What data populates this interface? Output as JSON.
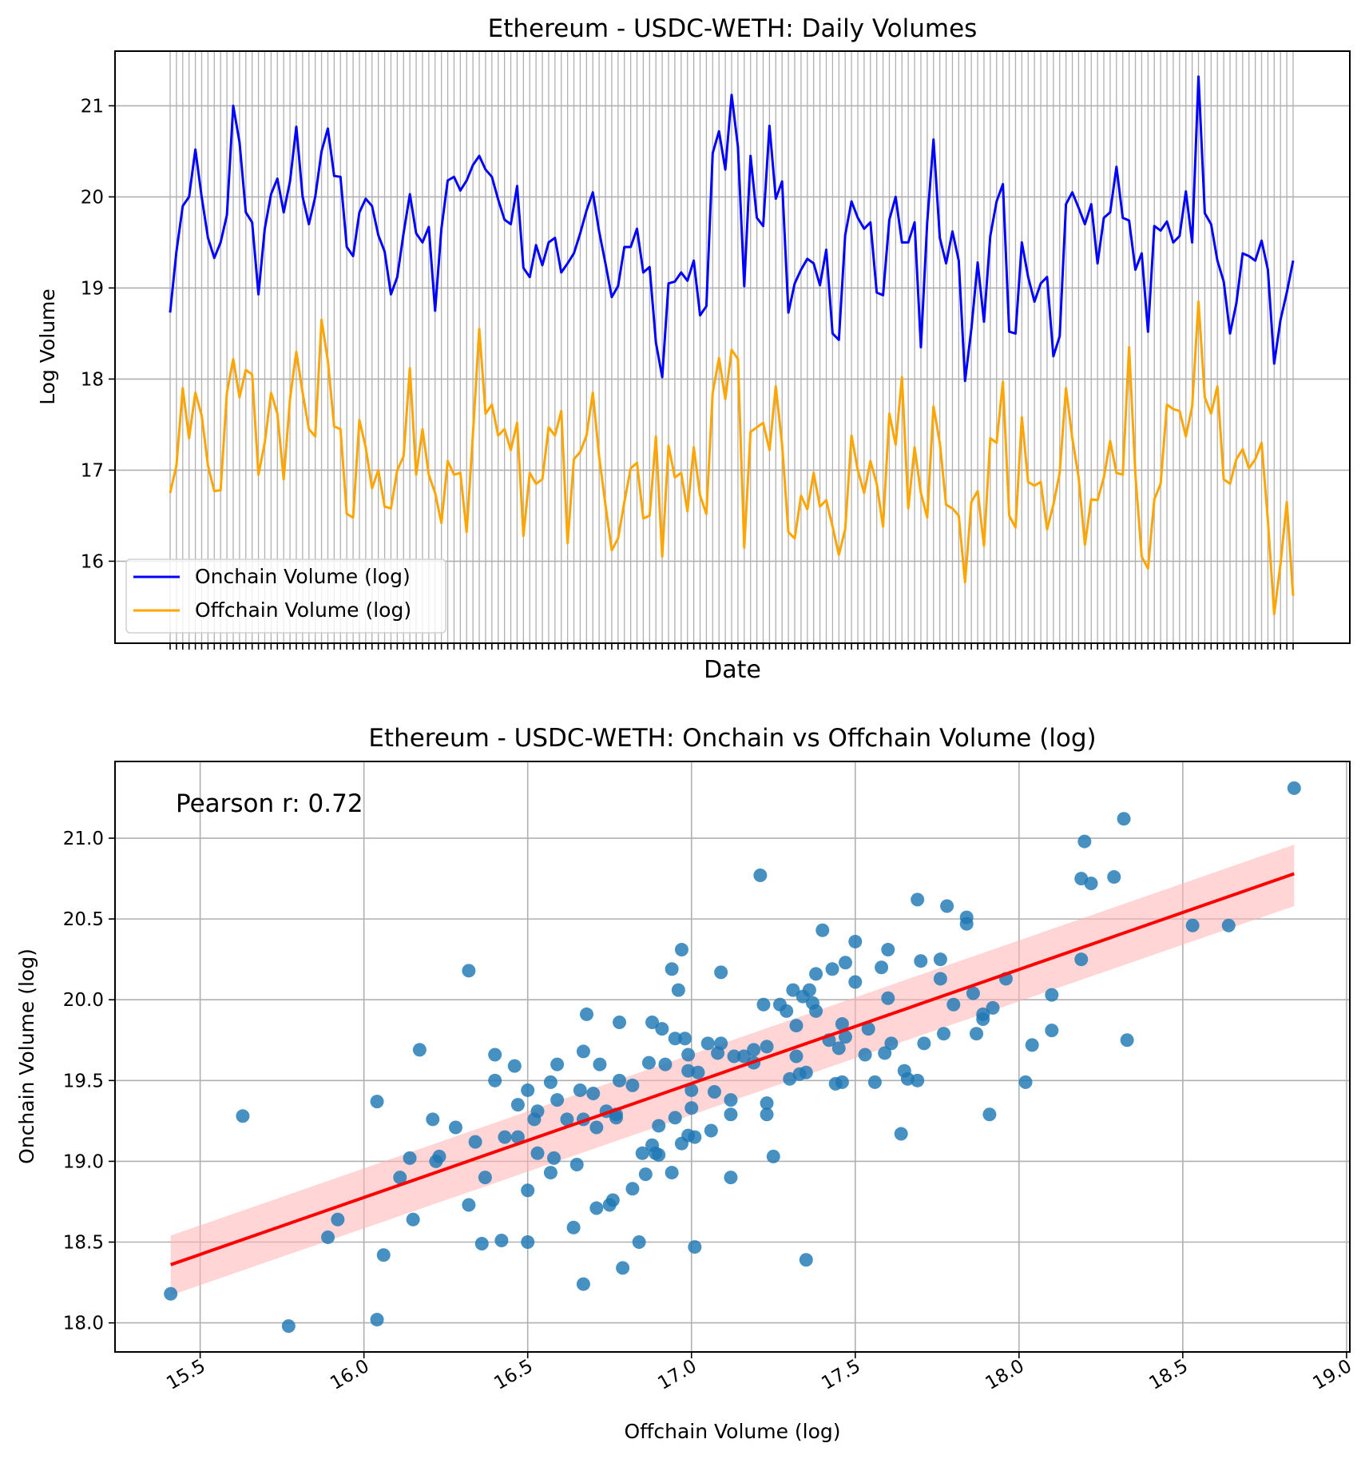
{
  "chart_data": [
    {
      "type": "line",
      "title": "Ethereum - USDC-WETH: Daily Volumes",
      "xlabel": "Date",
      "ylabel": "Log Volume",
      "ylim": [
        15.1,
        21.6
      ],
      "yticks": [
        "16",
        "17",
        "18",
        "19",
        "20",
        "21"
      ],
      "ytick_values": [
        16,
        17,
        18,
        19,
        20,
        21
      ],
      "grid": true,
      "legend_position": "lower-left",
      "series": [
        {
          "name": "Onchain Volume (log)",
          "color": "#0000ff",
          "values": [
            18.73,
            19.4,
            19.9,
            20.0,
            20.52,
            20.0,
            19.55,
            19.33,
            19.5,
            19.8,
            21.0,
            20.6,
            19.83,
            19.72,
            18.93,
            19.65,
            20.03,
            20.2,
            19.83,
            20.17,
            20.77,
            20.0,
            19.7,
            20.0,
            20.5,
            20.75,
            20.23,
            20.22,
            19.45,
            19.35,
            19.83,
            19.98,
            19.9,
            19.58,
            19.4,
            18.93,
            19.12,
            19.6,
            20.03,
            19.6,
            19.5,
            19.67,
            18.75,
            19.65,
            20.18,
            20.22,
            20.07,
            20.18,
            20.35,
            20.45,
            20.3,
            20.22,
            19.97,
            19.75,
            19.7,
            20.12,
            19.22,
            19.12,
            19.47,
            19.25,
            19.5,
            19.55,
            19.17,
            19.27,
            19.38,
            19.6,
            19.85,
            20.05,
            19.62,
            19.27,
            18.9,
            19.02,
            19.45,
            19.45,
            19.65,
            19.17,
            19.23,
            18.4,
            18.02,
            19.05,
            19.07,
            19.17,
            19.08,
            19.3,
            18.7,
            18.8,
            20.48,
            20.72,
            20.3,
            21.12,
            20.55,
            19.02,
            20.45,
            19.77,
            19.68,
            20.78,
            19.98,
            20.17,
            18.73,
            19.05,
            19.2,
            19.32,
            19.27,
            19.03,
            19.42,
            18.5,
            18.43,
            19.58,
            19.95,
            19.77,
            19.65,
            19.72,
            18.95,
            18.92,
            19.75,
            20.0,
            19.5,
            19.5,
            19.72,
            18.35,
            19.72,
            20.63,
            19.55,
            19.27,
            19.62,
            19.3,
            17.98,
            18.55,
            19.28,
            18.63,
            19.57,
            19.95,
            20.14,
            18.52,
            18.5,
            19.5,
            19.12,
            18.85,
            19.05,
            19.12,
            18.25,
            18.47,
            19.92,
            20.05,
            19.88,
            19.7,
            19.92,
            19.27,
            19.77,
            19.83,
            20.33,
            19.77,
            19.74,
            19.2,
            19.38,
            18.52,
            19.68,
            19.63,
            19.73,
            19.5,
            19.57,
            20.06,
            19.5,
            21.32,
            19.82,
            19.7,
            19.3,
            19.07,
            18.5,
            18.83,
            19.38,
            19.35,
            19.3,
            19.52,
            19.2,
            18.17,
            18.65,
            18.95,
            19.3
          ]
        },
        {
          "name": "Offchain Volume (log)",
          "color": "#ffa500",
          "values": [
            16.75,
            17.05,
            17.9,
            17.35,
            17.85,
            17.6,
            17.05,
            16.77,
            16.78,
            17.85,
            18.22,
            17.8,
            18.1,
            18.05,
            16.95,
            17.3,
            17.85,
            17.62,
            16.9,
            17.78,
            18.3,
            17.85,
            17.45,
            17.37,
            18.65,
            18.2,
            17.48,
            17.45,
            16.52,
            16.48,
            17.55,
            17.25,
            16.8,
            17.0,
            16.6,
            16.58,
            17.0,
            17.15,
            18.12,
            16.95,
            17.45,
            16.95,
            16.75,
            16.42,
            17.1,
            16.95,
            16.97,
            16.32,
            17.4,
            18.55,
            17.62,
            17.72,
            17.38,
            17.45,
            17.22,
            17.52,
            16.28,
            16.97,
            16.85,
            16.9,
            17.47,
            17.38,
            17.65,
            16.2,
            17.12,
            17.2,
            17.38,
            17.85,
            17.15,
            16.62,
            16.12,
            16.25,
            16.65,
            17.02,
            17.08,
            16.47,
            16.5,
            17.37,
            16.05,
            17.27,
            16.92,
            16.97,
            16.55,
            17.25,
            16.72,
            16.52,
            17.85,
            18.23,
            17.78,
            18.32,
            18.22,
            16.15,
            17.42,
            17.47,
            17.52,
            17.22,
            17.92,
            17.28,
            16.32,
            16.25,
            16.72,
            16.57,
            16.97,
            16.6,
            16.67,
            16.38,
            16.07,
            16.35,
            17.38,
            17.0,
            16.75,
            17.1,
            16.85,
            16.38,
            17.62,
            17.28,
            18.02,
            16.58,
            17.25,
            16.75,
            16.48,
            17.7,
            17.3,
            16.62,
            16.58,
            16.5,
            15.77,
            16.65,
            16.77,
            16.17,
            17.35,
            17.3,
            17.97,
            16.5,
            16.37,
            17.58,
            16.87,
            16.83,
            16.87,
            16.35,
            16.62,
            16.97,
            17.9,
            17.35,
            16.92,
            16.18,
            16.68,
            16.67,
            16.92,
            17.32,
            16.97,
            16.95,
            18.35,
            16.95,
            16.05,
            15.92,
            16.68,
            16.85,
            17.72,
            17.67,
            17.65,
            17.37,
            17.7,
            18.85,
            17.8,
            17.62,
            17.92,
            16.9,
            16.85,
            17.12,
            17.23,
            17.02,
            17.12,
            17.3,
            16.45,
            15.42,
            15.97,
            16.65,
            15.62
          ]
        }
      ]
    },
    {
      "type": "scatter",
      "title": "Ethereum - USDC-WETH: Onchain vs Offchain Volume (log)",
      "xlabel": "Offchain Volume (log)",
      "ylabel": "Onchain Volume (log)",
      "xlim": [
        15.24,
        19.01
      ],
      "ylim": [
        17.82,
        21.475
      ],
      "xticks": [
        "15.5",
        "16.0",
        "16.5",
        "17.0",
        "17.5",
        "18.0",
        "18.5",
        "19.0"
      ],
      "xtick_values": [
        15.5,
        16.0,
        16.5,
        17.0,
        17.5,
        18.0,
        18.5,
        19.0
      ],
      "yticks": [
        "18.0",
        "18.5",
        "19.0",
        "19.5",
        "20.0",
        "20.5",
        "21.0"
      ],
      "ytick_values": [
        18.0,
        18.5,
        19.0,
        19.5,
        20.0,
        20.5,
        21.0
      ],
      "grid": true,
      "annotation": "Pearson r: 0.72",
      "point_color": "#1f77b4",
      "regression": {
        "color": "#ff0000",
        "band_color": "#ffb3b3",
        "x": [
          15.41,
          18.84
        ],
        "y": [
          18.36,
          20.78
        ],
        "band_lower": [
          18.17,
          20.58
        ],
        "band_upper": [
          18.54,
          20.96
        ]
      },
      "points": [
        [
          15.41,
          18.18
        ],
        [
          15.63,
          19.28
        ],
        [
          15.77,
          17.98
        ],
        [
          15.89,
          18.53
        ],
        [
          15.92,
          18.64
        ],
        [
          16.04,
          19.37
        ],
        [
          16.04,
          18.02
        ],
        [
          16.06,
          18.42
        ],
        [
          16.11,
          18.9
        ],
        [
          16.14,
          19.02
        ],
        [
          16.15,
          18.64
        ],
        [
          16.17,
          19.69
        ],
        [
          16.21,
          19.26
        ],
        [
          16.22,
          19.0
        ],
        [
          16.23,
          19.03
        ],
        [
          16.28,
          19.21
        ],
        [
          16.32,
          20.18
        ],
        [
          16.32,
          18.73
        ],
        [
          16.34,
          19.12
        ],
        [
          16.36,
          18.49
        ],
        [
          16.37,
          18.9
        ],
        [
          16.4,
          19.5
        ],
        [
          16.4,
          19.66
        ],
        [
          16.42,
          18.51
        ],
        [
          16.43,
          19.15
        ],
        [
          16.46,
          19.59
        ],
        [
          16.47,
          19.15
        ],
        [
          16.47,
          19.35
        ],
        [
          16.5,
          18.5
        ],
        [
          16.5,
          18.82
        ],
        [
          16.5,
          19.44
        ],
        [
          16.52,
          19.26
        ],
        [
          16.53,
          19.31
        ],
        [
          16.53,
          19.05
        ],
        [
          16.57,
          19.49
        ],
        [
          16.57,
          18.93
        ],
        [
          16.58,
          19.02
        ],
        [
          16.59,
          19.6
        ],
        [
          16.59,
          19.38
        ],
        [
          16.62,
          19.26
        ],
        [
          16.64,
          18.59
        ],
        [
          16.65,
          18.98
        ],
        [
          16.66,
          19.44
        ],
        [
          16.67,
          19.26
        ],
        [
          16.67,
          19.68
        ],
        [
          16.67,
          18.24
        ],
        [
          16.68,
          19.91
        ],
        [
          16.7,
          19.42
        ],
        [
          16.71,
          18.71
        ],
        [
          16.71,
          19.21
        ],
        [
          16.72,
          19.6
        ],
        [
          16.74,
          19.31
        ],
        [
          16.75,
          18.73
        ],
        [
          16.76,
          18.76
        ],
        [
          16.77,
          19.29
        ],
        [
          16.77,
          19.27
        ],
        [
          16.78,
          19.5
        ],
        [
          16.78,
          19.86
        ],
        [
          16.79,
          18.34
        ],
        [
          16.82,
          18.83
        ],
        [
          16.82,
          19.47
        ],
        [
          16.84,
          18.5
        ],
        [
          16.85,
          19.05
        ],
        [
          16.86,
          18.92
        ],
        [
          16.87,
          19.61
        ],
        [
          16.88,
          19.86
        ],
        [
          16.88,
          19.1
        ],
        [
          16.89,
          19.05
        ],
        [
          16.9,
          19.22
        ],
        [
          16.9,
          19.04
        ],
        [
          16.91,
          19.82
        ],
        [
          16.92,
          19.6
        ],
        [
          16.94,
          18.93
        ],
        [
          16.94,
          20.19
        ],
        [
          16.95,
          19.27
        ],
        [
          16.95,
          19.76
        ],
        [
          16.96,
          20.06
        ],
        [
          16.97,
          19.11
        ],
        [
          16.97,
          20.31
        ],
        [
          16.98,
          19.76
        ],
        [
          16.99,
          19.66
        ],
        [
          16.99,
          19.16
        ],
        [
          16.99,
          19.56
        ],
        [
          17.0,
          19.44
        ],
        [
          17.0,
          19.33
        ],
        [
          17.01,
          19.15
        ],
        [
          17.01,
          18.47
        ],
        [
          17.02,
          19.55
        ],
        [
          17.05,
          19.73
        ],
        [
          17.06,
          19.19
        ],
        [
          17.07,
          19.43
        ],
        [
          17.08,
          19.67
        ],
        [
          17.09,
          20.17
        ],
        [
          17.09,
          19.73
        ],
        [
          17.12,
          19.38
        ],
        [
          17.12,
          19.29
        ],
        [
          17.12,
          18.9
        ],
        [
          17.13,
          19.65
        ],
        [
          17.16,
          19.65
        ],
        [
          17.19,
          19.61
        ],
        [
          17.19,
          19.69
        ],
        [
          17.21,
          20.77
        ],
        [
          17.22,
          19.97
        ],
        [
          17.23,
          19.71
        ],
        [
          17.23,
          19.36
        ],
        [
          17.23,
          19.29
        ],
        [
          17.25,
          19.03
        ],
        [
          17.27,
          19.97
        ],
        [
          17.29,
          19.93
        ],
        [
          17.3,
          19.51
        ],
        [
          17.31,
          20.06
        ],
        [
          17.32,
          19.84
        ],
        [
          17.32,
          19.65
        ],
        [
          17.33,
          19.54
        ],
        [
          17.34,
          20.02
        ],
        [
          17.35,
          18.39
        ],
        [
          17.35,
          19.55
        ],
        [
          17.36,
          20.06
        ],
        [
          17.37,
          19.98
        ],
        [
          17.38,
          20.16
        ],
        [
          17.38,
          19.93
        ],
        [
          17.4,
          20.43
        ],
        [
          17.42,
          19.75
        ],
        [
          17.43,
          20.19
        ],
        [
          17.44,
          19.48
        ],
        [
          17.45,
          19.7
        ],
        [
          17.46,
          19.49
        ],
        [
          17.46,
          19.85
        ],
        [
          17.47,
          19.77
        ],
        [
          17.47,
          20.23
        ],
        [
          17.5,
          20.11
        ],
        [
          17.5,
          20.36
        ],
        [
          17.53,
          19.66
        ],
        [
          17.54,
          19.82
        ],
        [
          17.56,
          19.49
        ],
        [
          17.58,
          20.2
        ],
        [
          17.59,
          19.67
        ],
        [
          17.6,
          20.31
        ],
        [
          17.6,
          20.01
        ],
        [
          17.61,
          19.73
        ],
        [
          17.64,
          19.17
        ],
        [
          17.65,
          19.56
        ],
        [
          17.66,
          19.51
        ],
        [
          17.69,
          20.62
        ],
        [
          17.69,
          19.5
        ],
        [
          17.7,
          20.24
        ],
        [
          17.71,
          19.73
        ],
        [
          17.76,
          20.25
        ],
        [
          17.76,
          20.13
        ],
        [
          17.77,
          19.79
        ],
        [
          17.78,
          20.58
        ],
        [
          17.8,
          19.97
        ],
        [
          17.84,
          20.51
        ],
        [
          17.84,
          20.47
        ],
        [
          17.86,
          20.04
        ],
        [
          17.87,
          19.79
        ],
        [
          17.89,
          19.91
        ],
        [
          17.89,
          19.88
        ],
        [
          17.91,
          19.29
        ],
        [
          17.92,
          19.95
        ],
        [
          17.96,
          20.13
        ],
        [
          18.02,
          19.49
        ],
        [
          18.04,
          19.72
        ],
        [
          18.1,
          19.81
        ],
        [
          18.1,
          20.03
        ],
        [
          18.19,
          20.25
        ],
        [
          18.19,
          20.75
        ],
        [
          18.2,
          20.98
        ],
        [
          18.22,
          20.72
        ],
        [
          18.29,
          20.76
        ],
        [
          18.32,
          21.12
        ],
        [
          18.33,
          19.75
        ],
        [
          18.53,
          20.46
        ],
        [
          18.64,
          20.46
        ],
        [
          18.84,
          21.31
        ]
      ]
    }
  ]
}
